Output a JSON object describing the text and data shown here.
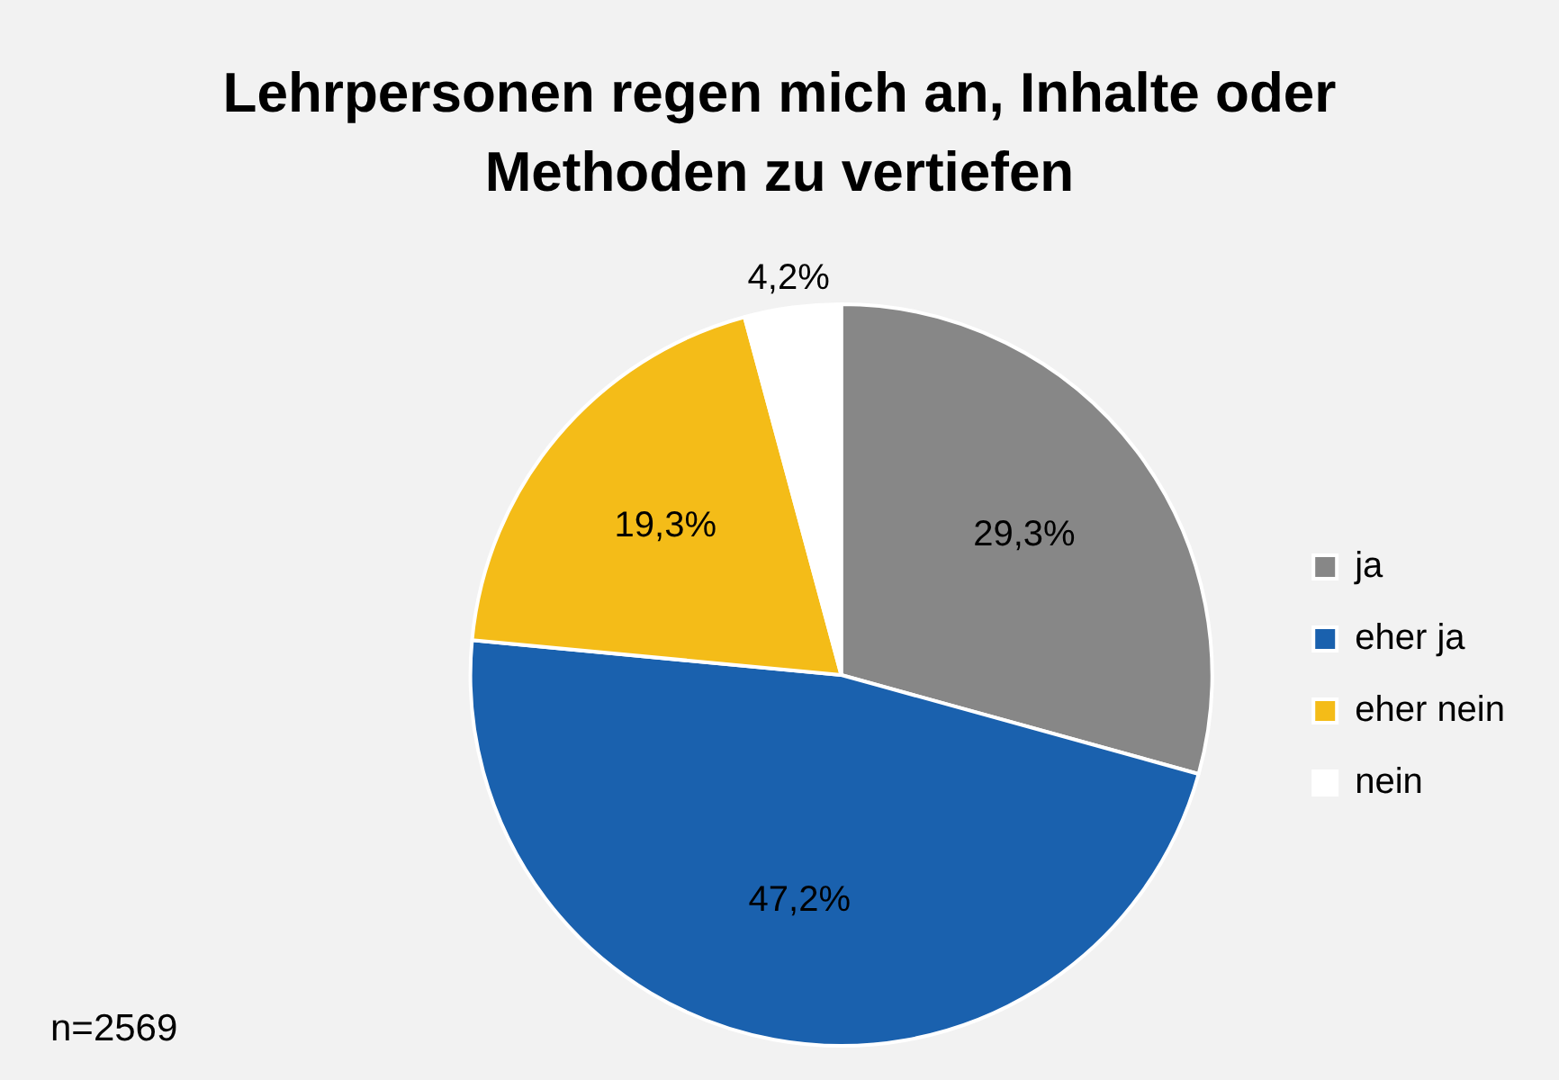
{
  "chart_data": {
    "type": "pie",
    "title": "Lehrpersonen regen mich an, Inhalte oder Methoden zu vertiefen",
    "categories": [
      "ja",
      "eher ja",
      "eher nein",
      "nein"
    ],
    "values": [
      29.3,
      47.2,
      19.3,
      4.2
    ],
    "value_labels": [
      "29,3%",
      "47,2%",
      "19,3%",
      "4,2%"
    ],
    "colors": [
      "#878787",
      "#1a61ae",
      "#f4bc18",
      "#ffffff"
    ],
    "legend": "right",
    "annotations": [
      "n=2569"
    ]
  }
}
